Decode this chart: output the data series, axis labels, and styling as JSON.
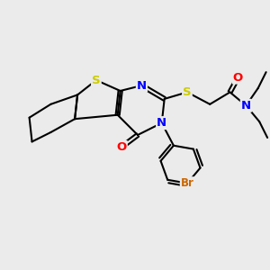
{
  "background_color": "#ebebeb",
  "atom_colors": {
    "S": "#cccc00",
    "N": "#0000ff",
    "O": "#ff0000",
    "Br": "#cc6600",
    "C": "#000000"
  },
  "bond_color": "#000000",
  "bond_width": 1.5
}
